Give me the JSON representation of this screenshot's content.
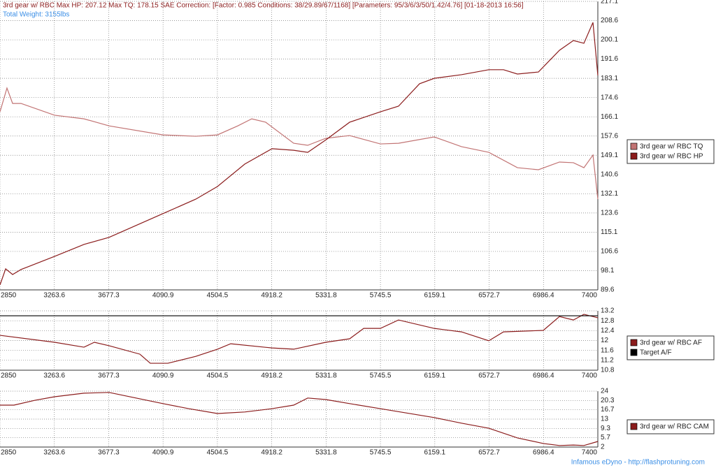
{
  "chart_data": [
    {
      "type": "line",
      "title": "3rd gear w/ RBC Max HP: 207.12 Max TQ: 178.15 SAE Correction: [Factor: 0.985 Conditions: 38/29.89/67/1168] [Parameters: 95/3/6/3/50/1.42/4.76] [01-18-2013 16:56]",
      "subtitle": "Total Weight: 3155lbs",
      "xlim": [
        2850,
        7400
      ],
      "xticks": [
        2850,
        3263.6,
        3677.3,
        4090.9,
        4504.5,
        4918.2,
        5331.8,
        5745.5,
        6159.1,
        6572.7,
        6986.4,
        7400
      ],
      "ylim": [
        89.6,
        217.1
      ],
      "yticks": [
        89.6,
        98.1,
        106.6,
        115.1,
        123.6,
        132.1,
        140.6,
        149.1,
        157.6,
        166.1,
        174.6,
        183.1,
        191.6,
        200.1,
        208.6,
        217.1
      ],
      "grid": true,
      "legend": "right",
      "series": [
        {
          "name": "3rd gear w/ RBC TQ",
          "color": "#c27474",
          "x": [
            2850,
            2903,
            2946,
            3010,
            3265,
            3489,
            3680,
            4090,
            4340,
            4505,
            4660,
            4766,
            4872,
            5085,
            5192,
            5330,
            5511,
            5745,
            5883,
            6155,
            6362,
            6570,
            6788,
            6948,
            7108,
            7214,
            7294,
            7363,
            7400
          ],
          "values": [
            168.3,
            178.8,
            172.0,
            172.0,
            166.8,
            165.2,
            162.1,
            158.1,
            157.5,
            158.1,
            162.1,
            165.2,
            163.7,
            154.4,
            153.5,
            156.6,
            157.8,
            154.1,
            154.4,
            157.2,
            152.9,
            150.4,
            143.6,
            142.7,
            146.1,
            145.8,
            143.6,
            149.2,
            129.7
          ]
        },
        {
          "name": "3rd gear w/ RBC HP",
          "color": "#8b1c1c",
          "x": [
            2850,
            2893,
            2946,
            3010,
            3265,
            3489,
            3680,
            4090,
            4340,
            4505,
            4713,
            4920,
            5085,
            5192,
            5330,
            5511,
            5745,
            5883,
            6043,
            6155,
            6362,
            6570,
            6682,
            6788,
            6948,
            7108,
            7214,
            7294,
            7363,
            7400
          ],
          "values": [
            91.8,
            98.9,
            96.4,
            98.6,
            104.4,
            109.7,
            112.8,
            123.3,
            129.7,
            135.3,
            145.2,
            152.0,
            151.3,
            150.4,
            155.9,
            163.7,
            168.3,
            170.8,
            180.7,
            183.1,
            184.7,
            186.9,
            186.9,
            185.0,
            185.9,
            195.5,
            199.8,
            198.6,
            207.8,
            184.4
          ]
        }
      ]
    },
    {
      "type": "line",
      "xlim": [
        2850,
        7400
      ],
      "xticks": [
        2850,
        3263.6,
        3677.3,
        4090.9,
        4504.5,
        4918.2,
        5331.8,
        5745.5,
        6159.1,
        6572.7,
        6986.4,
        7400
      ],
      "ylim": [
        10.8,
        13.2
      ],
      "yticks": [
        10.8,
        11.2,
        11.6,
        12,
        12.4,
        12.8,
        13.2
      ],
      "grid": true,
      "legend": "right",
      "series": [
        {
          "name": "3rd gear w/ RBC AF",
          "color": "#8b1c1c",
          "x": [
            2850,
            3265,
            3489,
            3568,
            3680,
            3914,
            3994,
            4127,
            4340,
            4505,
            4606,
            4920,
            5085,
            5330,
            5511,
            5618,
            5745,
            5883,
            6155,
            6362,
            6570,
            6682,
            6985,
            7108,
            7214,
            7294,
            7400
          ],
          "values": [
            12.21,
            11.93,
            11.73,
            11.93,
            11.79,
            11.45,
            11.08,
            11.08,
            11.36,
            11.65,
            11.87,
            11.7,
            11.65,
            11.93,
            12.07,
            12.49,
            12.49,
            12.83,
            12.49,
            12.35,
            11.99,
            12.35,
            12.41,
            12.97,
            12.83,
            13.06,
            12.92
          ]
        },
        {
          "name": "Target A/F",
          "color": "#000000",
          "x": [
            2850,
            7400
          ],
          "values": [
            13.0,
            13.0
          ]
        }
      ]
    },
    {
      "type": "line",
      "xlim": [
        2850,
        7400
      ],
      "xticks": [
        2850,
        3263.6,
        3677.3,
        4090.9,
        4504.5,
        4918.2,
        5331.8,
        5745.5,
        6159.1,
        6572.7,
        6986.4,
        7400
      ],
      "ylim": [
        2,
        24
      ],
      "yticks": [
        2,
        5.7,
        9.3,
        13,
        16.7,
        20.3,
        24
      ],
      "grid": true,
      "legend": "right",
      "annotations": [
        "Infamous eDyno - http://flashprotuning.com"
      ],
      "series": [
        {
          "name": "3rd gear w/ RBC CAM",
          "color": "#8b1c1c",
          "x": [
            2850,
            2956,
            3116,
            3265,
            3489,
            3680,
            4090,
            4287,
            4505,
            4713,
            4920,
            5085,
            5192,
            5330,
            5511,
            5745,
            6155,
            6362,
            6570,
            6788,
            6985,
            7108,
            7214,
            7294,
            7400
          ],
          "values": [
            18.5,
            18.5,
            20.4,
            21.8,
            23.2,
            23.5,
            19.1,
            17.1,
            15.2,
            15.8,
            17.1,
            18.5,
            21.3,
            20.7,
            19.1,
            17.1,
            13.6,
            11.4,
            9.4,
            5.6,
            3.4,
            2.6,
            2.8,
            2.6,
            4.2
          ]
        }
      ]
    }
  ]
}
